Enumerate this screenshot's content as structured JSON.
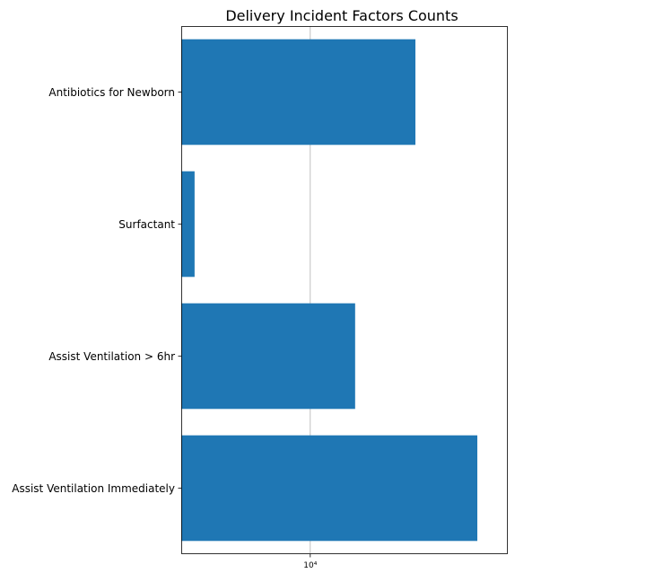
{
  "chart_data": {
    "type": "bar",
    "orientation": "horizontal",
    "title": "Delivery Incident Factors Counts",
    "xlabel": "",
    "ylabel": "",
    "x_scale": "log",
    "xlim": [
      3800,
      44000
    ],
    "grid": "vertical, major ticks only",
    "bar_color": "#1f77b4",
    "grid_color": "#b0b0b0",
    "categories": [
      "Assist Ventilation Immediately",
      "Assist Ventilation > 6hr",
      "Surfactant",
      "Antibiotics for Newborn"
    ],
    "values": [
      35000,
      14000,
      4200,
      22000
    ],
    "x_ticks": [
      {
        "value": 10000,
        "label": "10⁴"
      }
    ]
  }
}
